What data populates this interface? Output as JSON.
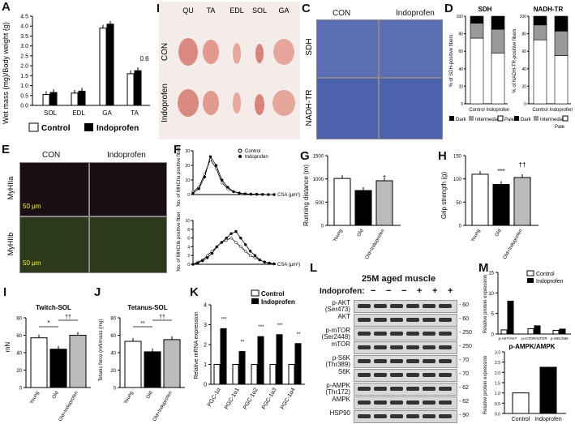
{
  "panels": {
    "A": {
      "letter": "A",
      "ylabel": "Wet mass (mg)/Body weight (g)",
      "yticks": [
        "0.0",
        "0.5",
        "1.0",
        "1.5",
        "2.0",
        "2.5",
        "3.0",
        "3.5",
        "4.0",
        "4.5"
      ],
      "categories": [
        "SOL",
        "EDL",
        "GA",
        "TA"
      ],
      "annot": "0.6",
      "legend": [
        "Control",
        "Indoprofen"
      ]
    },
    "B": {
      "letter": "B",
      "cols": [
        "QU",
        "TA",
        "EDL",
        "SOL",
        "GA"
      ],
      "rows": [
        "CON",
        "Indoprofen"
      ]
    },
    "C": {
      "letter": "C",
      "cols": [
        "CON",
        "Indoprofen"
      ],
      "rows": [
        "SDH",
        "NADH-TR"
      ]
    },
    "D": {
      "letter": "D",
      "left_title": "SDH",
      "right_title": "NADH-TR",
      "left_ylabel": "% of SDH-positive fibers",
      "right_ylabel": "% of NADH-TR-positive fibers",
      "yticks": [
        "0",
        "20",
        "40",
        "60",
        "80",
        "100"
      ],
      "cats": [
        "Control",
        "Indoprofen"
      ],
      "legend": [
        "Dark",
        "Intermediate",
        "Pale"
      ]
    },
    "E": {
      "letter": "E",
      "cols": [
        "CON",
        "Indoprofen"
      ],
      "rows": [
        "MyHIIa",
        "MyHIIb"
      ],
      "scale": "50 μm"
    },
    "F": {
      "letter": "F",
      "legend": [
        "Control",
        "Indoprofen"
      ],
      "top_ylabel": "No. of MHCIIa positive fiber",
      "bottom_ylabel": "No. of MHCIIb positive fiber",
      "xlabel": "CSA (μm²)",
      "top_yticks": [
        "0",
        "10",
        "20",
        "30"
      ],
      "bottom_yticks": [
        "0",
        "2",
        "4",
        "6",
        "8",
        "10"
      ]
    },
    "G": {
      "letter": "G",
      "ylabel": "Running distance (m)",
      "yticks": [
        "0",
        "500",
        "1000",
        "1500"
      ],
      "cats": [
        "Young",
        "Old",
        "Old+Indoprofen"
      ],
      "sig": "†"
    },
    "H": {
      "letter": "H",
      "ylabel": "Grip strength (g)",
      "yticks": [
        "0",
        "50",
        "100",
        "150"
      ],
      "cats": [
        "Young",
        "Old",
        "Old+Indoprofen"
      ],
      "sig1": "***",
      "sig2": "††"
    },
    "I": {
      "letter": "I",
      "title": "Twitch-SOL",
      "ylabel": "mN",
      "yticks": [
        "0",
        "20",
        "40",
        "60",
        "80"
      ],
      "cats": [
        "Young",
        "Old",
        "Old+Indoprofen"
      ],
      "sig1": "*",
      "sig2": "††"
    },
    "J": {
      "letter": "J",
      "title": "Tetanus-SOL",
      "ylabel": "Tetanic force (mN/mass (mg)",
      "yticks": [
        "0",
        "20",
        "40",
        "60",
        "80"
      ],
      "cats": [
        "Young",
        "Old",
        "Old+Indoprofen"
      ],
      "sig1": "**",
      "sig2": "††"
    },
    "K": {
      "letter": "K",
      "ylabel": "Relative mRNA expression",
      "yticks": [
        "0",
        "1",
        "2",
        "3",
        "4"
      ],
      "cats": [
        "PGC-1α",
        "PGC-1α1",
        "PGC-1α2",
        "PGC-1α3",
        "PGC-1α4"
      ],
      "legend": [
        "Control",
        "Indoprofen"
      ],
      "sigs": [
        "***",
        "**",
        "***",
        "***",
        "**"
      ]
    },
    "L": {
      "letter": "L",
      "title": "25M aged muscle",
      "treat_label": "Indoprofen:",
      "signs": [
        "−",
        "−",
        "−",
        "+",
        "+",
        "+"
      ],
      "bands": [
        {
          "name": "p-AKT",
          "sub": "(Ser473)",
          "mw": "60"
        },
        {
          "name": "AKT",
          "sub": "",
          "mw": "60"
        },
        {
          "name": "p-mTOR",
          "sub": "(Ser2448)",
          "mw": "250"
        },
        {
          "name": "mTOR",
          "sub": "",
          "mw": "250"
        },
        {
          "name": "p-S6K",
          "sub": "(Thr389)",
          "mw": "70"
        },
        {
          "name": "S6K",
          "sub": "",
          "mw": "70"
        },
        {
          "name": "p-AMPK",
          "sub": "(Thr172)",
          "mw": "62"
        },
        {
          "name": "AMPK",
          "sub": "",
          "mw": "62"
        },
        {
          "name": "HSP90",
          "sub": "",
          "mw": "90"
        }
      ]
    },
    "M": {
      "letter": "M",
      "top_ylabel": "Relative protein expression",
      "top_yticks": [
        "0",
        "5",
        "10",
        "15"
      ],
      "top_cats": [
        "p-AKT/AKT",
        "p-mTOR/mTOR",
        "p-S6K/S6K"
      ],
      "legend": [
        "Control",
        "Indoprofen"
      ],
      "bottom_title": "p-AMPK/AMPK",
      "bottom_ylabel": "Relative protein expression",
      "bottom_yticks": [
        "0.0",
        "0.5",
        "1.0",
        "1.5",
        "2.0",
        "2.5",
        "3.0"
      ],
      "bottom_cats": [
        "Control",
        "Indoprofen"
      ]
    }
  },
  "chart_data": [
    {
      "panel": "A",
      "type": "bar",
      "categories": [
        "SOL",
        "EDL",
        "GA",
        "TA"
      ],
      "series": [
        {
          "name": "Control",
          "values": [
            0.55,
            0.62,
            3.9,
            1.6
          ]
        },
        {
          "name": "Indoprofen",
          "values": [
            0.65,
            0.72,
            4.1,
            1.75
          ]
        }
      ],
      "ylim": [
        0,
        4.5
      ]
    },
    {
      "panel": "G",
      "type": "bar",
      "categories": [
        "Young",
        "Old",
        "Old+Indoprofen"
      ],
      "values": [
        1010,
        750,
        960
      ],
      "ylim": [
        0,
        1500
      ]
    },
    {
      "panel": "H",
      "type": "bar",
      "categories": [
        "Young",
        "Old",
        "Old+Indoprofen"
      ],
      "values": [
        110,
        88,
        103
      ],
      "ylim": [
        0,
        150
      ]
    },
    {
      "panel": "I",
      "type": "bar",
      "categories": [
        "Young",
        "Old",
        "Old+Indoprofen"
      ],
      "values": [
        57,
        44,
        60
      ],
      "ylim": [
        0,
        80
      ]
    },
    {
      "panel": "J",
      "type": "bar",
      "categories": [
        "Young",
        "Old",
        "Old+Indoprofen"
      ],
      "values": [
        53,
        41,
        55
      ],
      "ylim": [
        0,
        80
      ]
    },
    {
      "panel": "K",
      "type": "bar",
      "categories": [
        "PGC-1α",
        "PGC-1α1",
        "PGC-1α2",
        "PGC-1α3",
        "PGC-1α4"
      ],
      "series": [
        {
          "name": "Control",
          "values": [
            1,
            1,
            1,
            1,
            1
          ]
        },
        {
          "name": "Indoprofen",
          "values": [
            2.8,
            1.65,
            2.4,
            2.5,
            2.05
          ]
        }
      ],
      "ylim": [
        0,
        4
      ]
    },
    {
      "panel": "M-top",
      "type": "bar",
      "categories": [
        "p-AKT/AKT",
        "p-mTOR/mTOR",
        "p-S6K/S6K"
      ],
      "series": [
        {
          "name": "Control",
          "values": [
            1,
            1.3,
            0.9
          ]
        },
        {
          "name": "Indoprofen",
          "values": [
            8,
            2,
            1.2
          ]
        }
      ],
      "ylim": [
        0,
        15
      ]
    },
    {
      "panel": "M-bottom",
      "type": "bar",
      "categories": [
        "Control",
        "Indoprofen"
      ],
      "values": [
        1,
        2.25
      ],
      "ylim": [
        0,
        3
      ]
    },
    {
      "panel": "D-SDH",
      "type": "bar",
      "categories": [
        "Control",
        "Indoprofen"
      ],
      "series": [
        {
          "name": "Pale",
          "values": [
            75,
            58
          ]
        },
        {
          "name": "Intermediate",
          "values": [
            17,
            27
          ]
        },
        {
          "name": "Dark",
          "values": [
            8,
            15
          ]
        }
      ],
      "ylim": [
        0,
        100
      ]
    },
    {
      "panel": "D-NADH",
      "type": "bar",
      "categories": [
        "Control",
        "Indoprofen"
      ],
      "series": [
        {
          "name": "Pale",
          "values": [
            73,
            55
          ]
        },
        {
          "name": "Intermediate",
          "values": [
            17,
            28
          ]
        },
        {
          "name": "Dark",
          "values": [
            10,
            17
          ]
        }
      ],
      "ylim": [
        0,
        100
      ]
    }
  ]
}
